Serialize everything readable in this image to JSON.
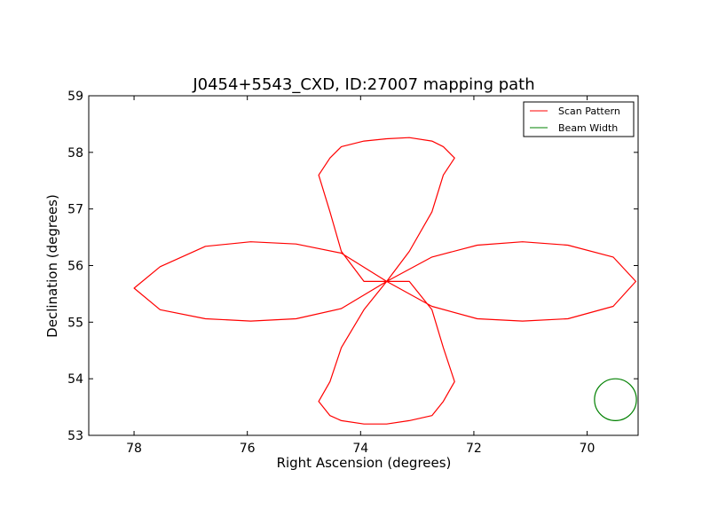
{
  "chart_data": {
    "type": "line",
    "title": "J0454+5543_CXD, ID:27007 mapping path",
    "xlabel": "Right Ascension (degrees)",
    "ylabel": "Declination (degrees)",
    "xlim": [
      78.8,
      69.1
    ],
    "ylim": [
      53,
      59
    ],
    "x_reversed": true,
    "xticks": [
      78,
      76,
      74,
      72,
      70
    ],
    "yticks": [
      53,
      54,
      55,
      56,
      57,
      58,
      59
    ],
    "grid": false,
    "legend_position": "top-right",
    "center": {
      "x": 73.54,
      "y": 55.72
    },
    "series": [
      {
        "name": "Scan Pattern",
        "color": "#ff0000",
        "x": [
          73.54,
          74.34,
          75.14,
          75.94,
          76.74,
          77.54,
          78.0,
          77.54,
          76.74,
          75.94,
          75.14,
          74.34,
          73.54,
          73.14,
          72.74,
          72.54,
          72.34,
          72.54,
          72.74,
          73.14,
          73.54,
          73.94,
          74.34,
          74.54,
          74.74,
          74.54,
          74.34,
          73.94,
          73.54,
          72.74,
          71.94,
          71.14,
          70.34,
          69.54,
          69.14,
          69.54,
          70.34,
          71.14,
          71.94,
          72.74,
          73.54,
          73.94,
          74.34,
          74.54,
          74.74,
          74.54,
          74.34,
          73.94,
          73.54,
          73.14,
          72.74,
          72.54,
          72.34,
          72.54,
          72.74,
          73.14,
          73.54
        ],
        "y": [
          55.72,
          55.24,
          55.06,
          55.02,
          55.06,
          55.22,
          55.6,
          55.98,
          56.34,
          56.42,
          56.38,
          56.22,
          55.72,
          56.25,
          56.95,
          57.6,
          57.9,
          58.1,
          58.2,
          58.26,
          58.24,
          58.2,
          58.1,
          57.9,
          57.6,
          56.95,
          56.25,
          55.72,
          55.72,
          56.15,
          56.36,
          56.42,
          56.36,
          56.15,
          55.72,
          55.28,
          55.06,
          55.02,
          55.06,
          55.28,
          55.72,
          55.22,
          54.55,
          53.95,
          53.6,
          53.35,
          53.26,
          53.2,
          53.2,
          53.26,
          53.35,
          53.6,
          53.95,
          54.55,
          55.22,
          55.72,
          55.72
        ]
      },
      {
        "name": "Beam Width",
        "color": "#008000",
        "circle": {
          "x": 69.5,
          "y": 53.63,
          "radius": 0.37
        }
      }
    ]
  }
}
